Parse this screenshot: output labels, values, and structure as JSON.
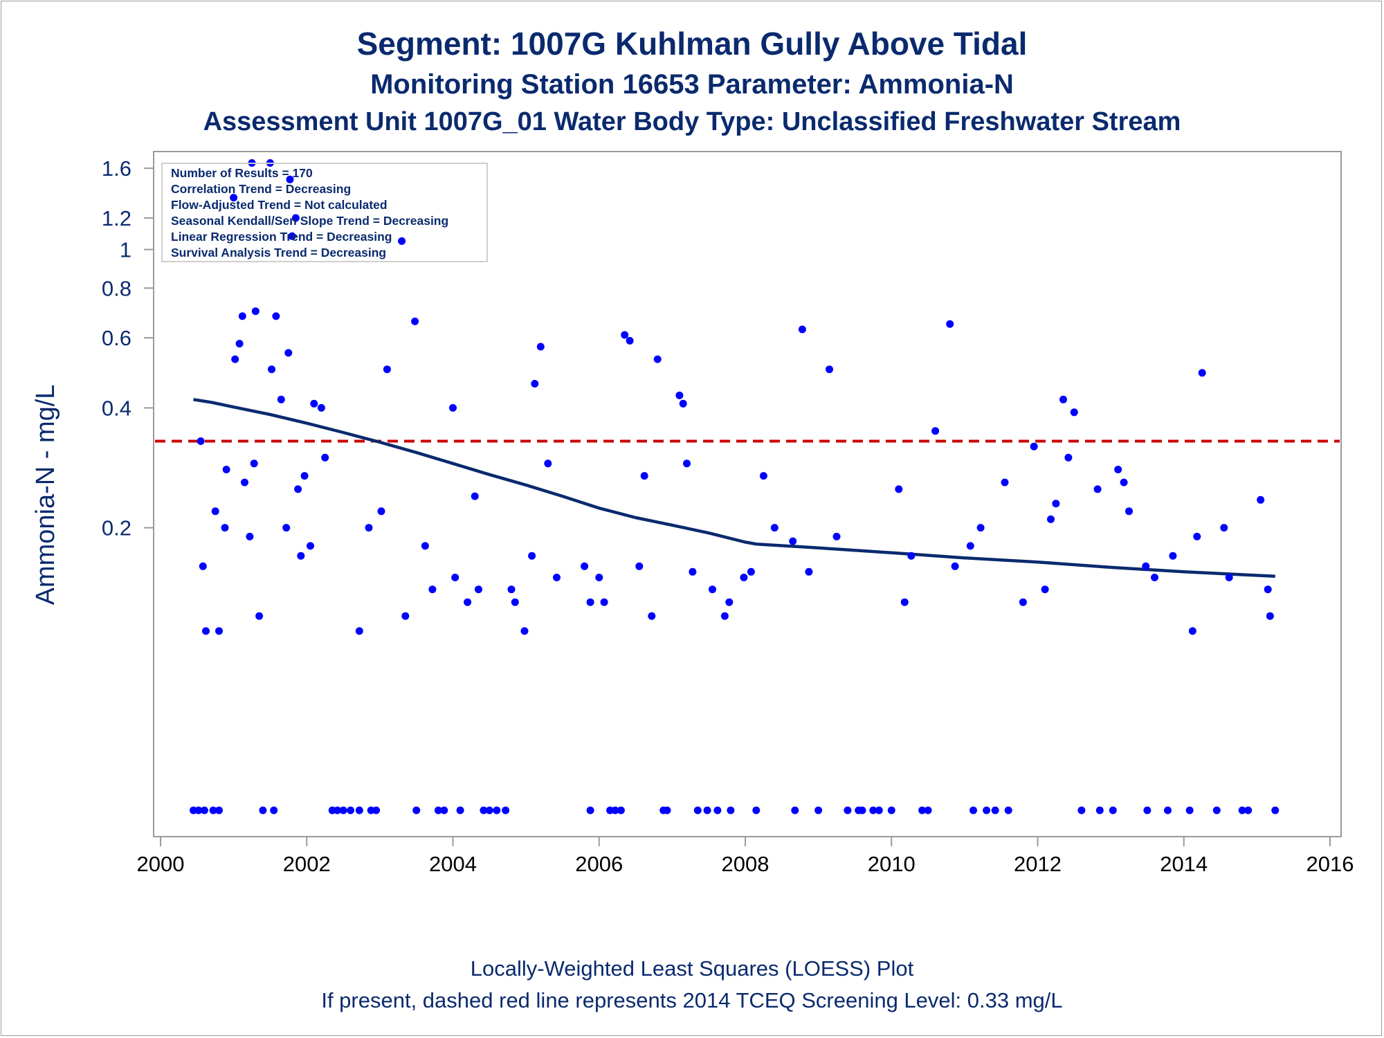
{
  "titles": {
    "line1": "Segment: 1007G  Kuhlman Gully Above Tidal",
    "line2": "Monitoring Station 16653 Parameter: Ammonia-N",
    "line3": "Assessment Unit 1007G_01   Water Body Type: Unclassified Freshwater Stream"
  },
  "footnotes": {
    "line1": "Locally-Weighted Least Squares (LOESS) Plot",
    "line2": "If present, dashed red line represents 2014 TCEQ Screening Level: 0.33 mg/L"
  },
  "stats_box": [
    "Number of Results = 170",
    "Correlation Trend = Decreasing",
    "Flow-Adjusted Trend = Not calculated",
    "Seasonal Kendall/Sen Slope Trend = Decreasing",
    "Linear Regression Trend = Decreasing",
    "Survival Analysis Trend = Decreasing"
  ],
  "colors": {
    "points": "#0000ff",
    "loess_line": "#0a2a6e",
    "screening_line": "#cc0000",
    "text": "#0a2a6e",
    "axis": "#9a9a9a"
  },
  "chart_data": {
    "type": "scatter",
    "xlabel": "",
    "ylabel": "Ammonia-N - mg/L",
    "y_scale": "log",
    "xlim": [
      2000,
      2016
    ],
    "ylim": [
      0.035,
      1.7
    ],
    "x_ticks": [
      2000,
      2002,
      2004,
      2006,
      2008,
      2010,
      2012,
      2014,
      2016
    ],
    "y_ticks": [
      0.2,
      0.4,
      0.6,
      0.8,
      1,
      1.2,
      1.6
    ],
    "y_tick_labels": [
      "0.2",
      "0.4",
      "0.6",
      "0.8",
      "1",
      "1.2",
      "1.6"
    ],
    "grid": false,
    "screening_level": 0.33,
    "series": [
      {
        "kind": "points",
        "points": [
          [
            2000.45,
            0.039
          ],
          [
            2000.52,
            0.039
          ],
          [
            2000.6,
            0.039
          ],
          [
            2000.72,
            0.039
          ],
          [
            2000.8,
            0.039
          ],
          [
            2001.4,
            0.039
          ],
          [
            2001.55,
            0.039
          ],
          [
            2002.35,
            0.039
          ],
          [
            2002.42,
            0.039
          ],
          [
            2002.5,
            0.039
          ],
          [
            2002.6,
            0.039
          ],
          [
            2002.72,
            0.039
          ],
          [
            2002.88,
            0.039
          ],
          [
            2002.95,
            0.039
          ],
          [
            2003.5,
            0.039
          ],
          [
            2003.8,
            0.039
          ],
          [
            2003.88,
            0.039
          ],
          [
            2004.1,
            0.039
          ],
          [
            2004.42,
            0.039
          ],
          [
            2004.5,
            0.039
          ],
          [
            2004.6,
            0.039
          ],
          [
            2004.72,
            0.039
          ],
          [
            2005.88,
            0.039
          ],
          [
            2006.15,
            0.039
          ],
          [
            2006.22,
            0.039
          ],
          [
            2006.3,
            0.039
          ],
          [
            2006.88,
            0.039
          ],
          [
            2006.93,
            0.039
          ],
          [
            2007.35,
            0.039
          ],
          [
            2007.48,
            0.039
          ],
          [
            2007.62,
            0.039
          ],
          [
            2007.8,
            0.039
          ],
          [
            2008.15,
            0.039
          ],
          [
            2008.68,
            0.039
          ],
          [
            2009.0,
            0.039
          ],
          [
            2009.4,
            0.039
          ],
          [
            2009.55,
            0.039
          ],
          [
            2009.6,
            0.039
          ],
          [
            2009.75,
            0.039
          ],
          [
            2009.83,
            0.039
          ],
          [
            2010.0,
            0.039
          ],
          [
            2010.42,
            0.039
          ],
          [
            2010.5,
            0.039
          ],
          [
            2011.12,
            0.039
          ],
          [
            2011.3,
            0.039
          ],
          [
            2011.42,
            0.039
          ],
          [
            2011.6,
            0.039
          ],
          [
            2012.6,
            0.039
          ],
          [
            2012.85,
            0.039
          ],
          [
            2013.03,
            0.039
          ],
          [
            2013.5,
            0.039
          ],
          [
            2013.78,
            0.039
          ],
          [
            2014.08,
            0.039
          ],
          [
            2014.45,
            0.039
          ],
          [
            2014.8,
            0.039
          ],
          [
            2014.88,
            0.039
          ],
          [
            2015.25,
            0.039
          ],
          [
            2000.55,
            0.33
          ],
          [
            2000.58,
            0.16
          ],
          [
            2000.62,
            0.11
          ],
          [
            2000.75,
            0.22
          ],
          [
            2000.8,
            0.11
          ],
          [
            2000.88,
            0.2
          ],
          [
            2000.9,
            0.28
          ],
          [
            2001.0,
            1.35
          ],
          [
            2001.02,
            0.53
          ],
          [
            2001.08,
            0.58
          ],
          [
            2001.12,
            0.68
          ],
          [
            2001.15,
            0.26
          ],
          [
            2001.22,
            0.19
          ],
          [
            2001.25,
            1.65
          ],
          [
            2001.28,
            0.29
          ],
          [
            2001.3,
            0.7
          ],
          [
            2001.35,
            0.12
          ],
          [
            2001.5,
            1.65
          ],
          [
            2001.52,
            0.5
          ],
          [
            2001.58,
            0.68
          ],
          [
            2001.65,
            0.42
          ],
          [
            2001.72,
            0.2
          ],
          [
            2001.75,
            0.55
          ],
          [
            2001.77,
            1.5
          ],
          [
            2001.8,
            1.08
          ],
          [
            2001.85,
            1.2
          ],
          [
            2001.88,
            0.25
          ],
          [
            2001.92,
            0.17
          ],
          [
            2001.97,
            0.27
          ],
          [
            2002.05,
            0.18
          ],
          [
            2002.1,
            0.41
          ],
          [
            2002.2,
            0.4
          ],
          [
            2002.25,
            0.3
          ],
          [
            2002.72,
            0.11
          ],
          [
            2002.85,
            0.2
          ],
          [
            2003.02,
            0.22
          ],
          [
            2003.1,
            0.5
          ],
          [
            2003.3,
            1.05
          ],
          [
            2003.35,
            0.12
          ],
          [
            2003.48,
            0.66
          ],
          [
            2003.62,
            0.18
          ],
          [
            2003.72,
            0.14
          ],
          [
            2004.0,
            0.4
          ],
          [
            2004.03,
            0.15
          ],
          [
            2004.2,
            0.13
          ],
          [
            2004.3,
            0.24
          ],
          [
            2004.35,
            0.14
          ],
          [
            2004.8,
            0.14
          ],
          [
            2004.85,
            0.13
          ],
          [
            2004.98,
            0.11
          ],
          [
            2005.08,
            0.17
          ],
          [
            2005.12,
            0.46
          ],
          [
            2005.2,
            0.57
          ],
          [
            2005.3,
            0.29
          ],
          [
            2005.42,
            0.15
          ],
          [
            2005.8,
            0.16
          ],
          [
            2005.88,
            0.13
          ],
          [
            2006.0,
            0.15
          ],
          [
            2006.07,
            0.13
          ],
          [
            2006.35,
            0.61
          ],
          [
            2006.42,
            0.59
          ],
          [
            2006.55,
            0.16
          ],
          [
            2006.62,
            0.27
          ],
          [
            2006.72,
            0.12
          ],
          [
            2006.8,
            0.53
          ],
          [
            2007.1,
            0.43
          ],
          [
            2007.15,
            0.41
          ],
          [
            2007.2,
            0.29
          ],
          [
            2007.28,
            0.155
          ],
          [
            2007.55,
            0.14
          ],
          [
            2007.72,
            0.12
          ],
          [
            2007.78,
            0.13
          ],
          [
            2007.98,
            0.15
          ],
          [
            2008.08,
            0.155
          ],
          [
            2008.25,
            0.27
          ],
          [
            2008.4,
            0.2
          ],
          [
            2008.65,
            0.185
          ],
          [
            2008.78,
            0.63
          ],
          [
            2008.87,
            0.155
          ],
          [
            2009.15,
            0.5
          ],
          [
            2009.25,
            0.19
          ],
          [
            2010.1,
            0.25
          ],
          [
            2010.18,
            0.13
          ],
          [
            2010.27,
            0.17
          ],
          [
            2010.6,
            0.35
          ],
          [
            2010.8,
            0.65
          ],
          [
            2010.87,
            0.16
          ],
          [
            2011.08,
            0.18
          ],
          [
            2011.22,
            0.2
          ],
          [
            2011.55,
            0.26
          ],
          [
            2011.8,
            0.13
          ],
          [
            2011.95,
            0.32
          ],
          [
            2012.1,
            0.14
          ],
          [
            2012.18,
            0.21
          ],
          [
            2012.25,
            0.23
          ],
          [
            2012.35,
            0.42
          ],
          [
            2012.42,
            0.3
          ],
          [
            2012.5,
            0.39
          ],
          [
            2012.82,
            0.25
          ],
          [
            2013.1,
            0.28
          ],
          [
            2013.18,
            0.26
          ],
          [
            2013.25,
            0.22
          ],
          [
            2013.48,
            0.16
          ],
          [
            2013.6,
            0.15
          ],
          [
            2013.85,
            0.17
          ],
          [
            2014.12,
            0.11
          ],
          [
            2014.18,
            0.19
          ],
          [
            2014.25,
            0.49
          ],
          [
            2014.55,
            0.2
          ],
          [
            2014.62,
            0.15
          ],
          [
            2015.05,
            0.235
          ],
          [
            2015.15,
            0.14
          ],
          [
            2015.18,
            0.12
          ]
        ]
      },
      {
        "kind": "loess",
        "points": [
          [
            2000.45,
            0.42
          ],
          [
            2000.7,
            0.413
          ],
          [
            2001.0,
            0.402
          ],
          [
            2001.5,
            0.385
          ],
          [
            2002.0,
            0.366
          ],
          [
            2002.5,
            0.347
          ],
          [
            2003.0,
            0.328
          ],
          [
            2003.5,
            0.309
          ],
          [
            2004.0,
            0.29
          ],
          [
            2004.5,
            0.272
          ],
          [
            2005.0,
            0.256
          ],
          [
            2005.5,
            0.24
          ],
          [
            2006.0,
            0.224
          ],
          [
            2006.5,
            0.212
          ],
          [
            2007.0,
            0.203
          ],
          [
            2007.5,
            0.194
          ],
          [
            2008.0,
            0.184
          ],
          [
            2008.15,
            0.182
          ],
          [
            2009.0,
            0.178
          ],
          [
            2010.0,
            0.173
          ],
          [
            2011.0,
            0.168
          ],
          [
            2012.0,
            0.164
          ],
          [
            2013.0,
            0.159
          ],
          [
            2014.0,
            0.155
          ],
          [
            2015.25,
            0.151
          ]
        ]
      }
    ]
  }
}
